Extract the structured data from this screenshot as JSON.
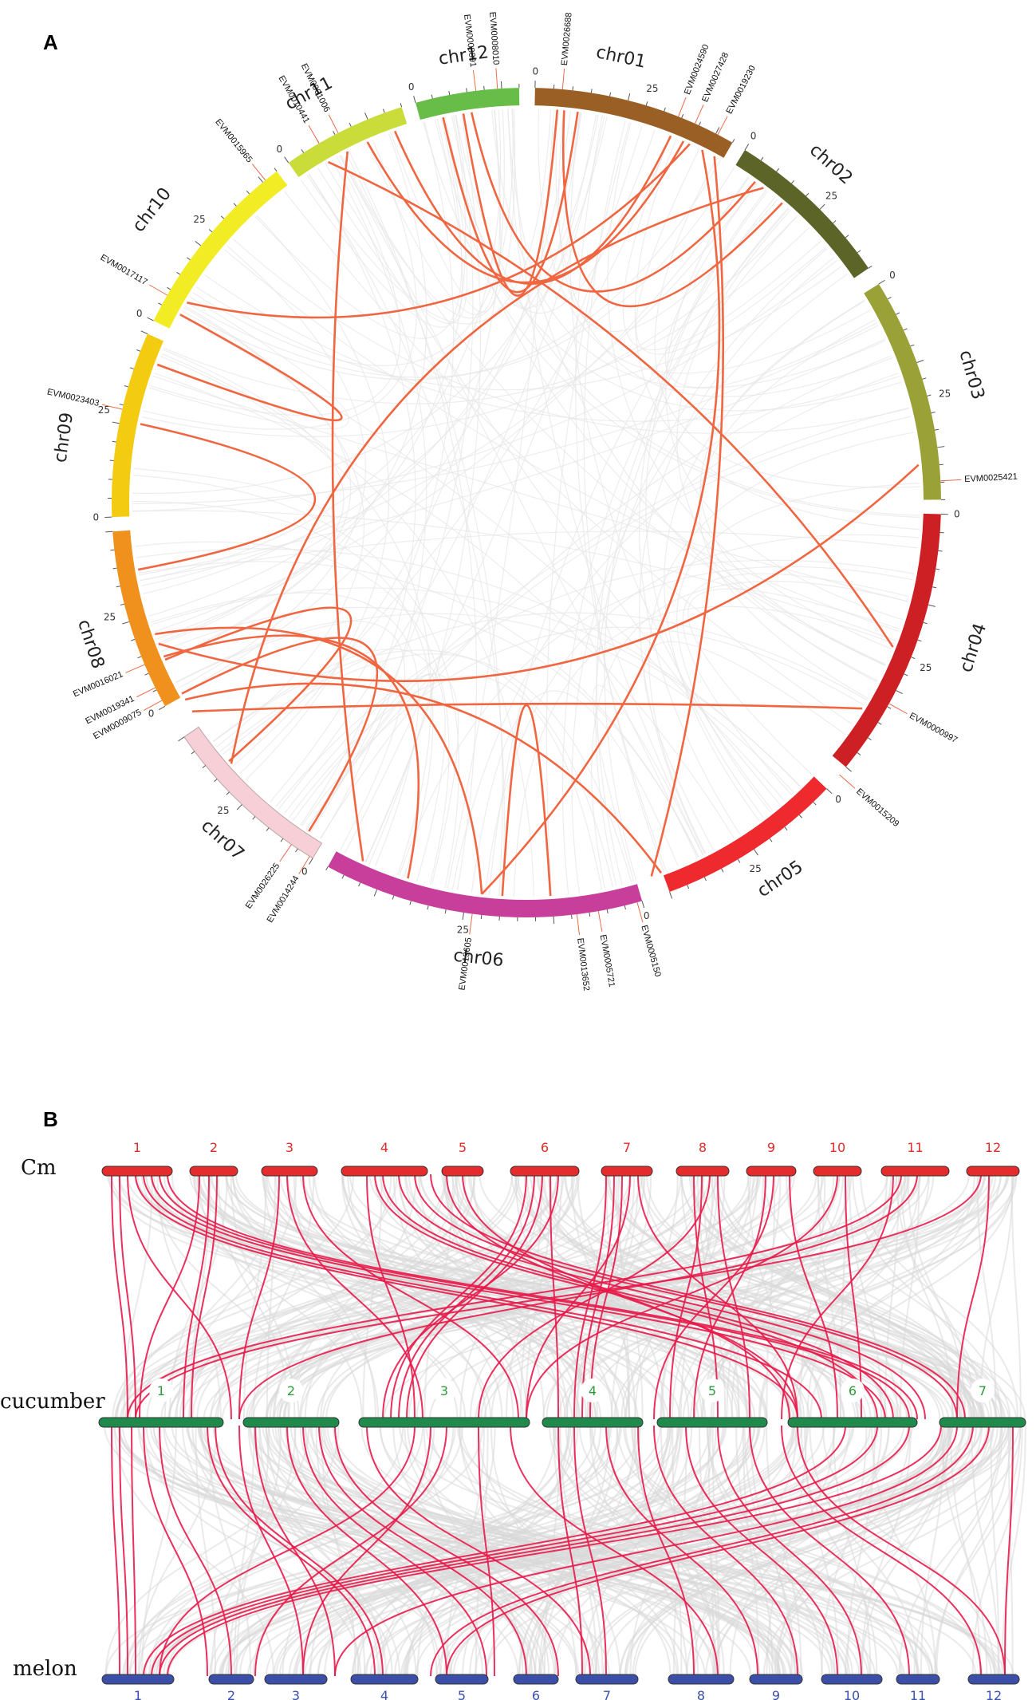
{
  "panel_a": {
    "label": "A",
    "chromosomes": [
      {
        "name": "chr01",
        "color": "#9a5f24"
      },
      {
        "name": "chr02",
        "color": "#5c6428"
      },
      {
        "name": "chr03",
        "color": "#9aa137"
      },
      {
        "name": "chr04",
        "color": "#cc2025"
      },
      {
        "name": "chr05",
        "color": "#ee2a2e"
      },
      {
        "name": "chr06",
        "color": "#c83f9b"
      },
      {
        "name": "chr07",
        "color": "#f7cfd6"
      },
      {
        "name": "chr08",
        "color": "#f0911d"
      },
      {
        "name": "chr09",
        "color": "#f3cc12"
      },
      {
        "name": "chr10",
        "color": "#f2ec25"
      },
      {
        "name": "chr11",
        "color": "#c9dc3a"
      },
      {
        "name": "chr12",
        "color": "#67bd47"
      }
    ],
    "tick_labels": [
      "0",
      "25"
    ],
    "genes": [
      "EVM0026688",
      "EVM0024590",
      "EVM0027428",
      "EVM0019230",
      "EVM0025421",
      "EVM0000997",
      "EVM0015209",
      "EVM0005150",
      "EVM0005721",
      "EVM0013652",
      "EVM0013605",
      "EVM0014244",
      "EVM0026225",
      "EVM0009075",
      "EVM0019341",
      "EVM0016021",
      "EVM0023403",
      "EVM0017117",
      "EVM0015965",
      "EVM0010441",
      "EVM0001006",
      "EVM0008891",
      "EVM0008010"
    ],
    "link_color": "#ef6641"
  },
  "panel_b": {
    "label": "B",
    "rows": [
      {
        "name": "Cm",
        "numbers": [
          "1",
          "2",
          "3",
          "4",
          "5",
          "6",
          "7",
          "8",
          "9",
          "10",
          "11",
          "12"
        ],
        "bar_color": "#e52b2b"
      },
      {
        "name": "cucumber",
        "numbers": [
          "1",
          "2",
          "3",
          "4",
          "5",
          "6",
          "7"
        ],
        "bar_color": "#1f8a4c"
      },
      {
        "name": "melon",
        "numbers": [
          "1",
          "2",
          "3",
          "4",
          "5",
          "6",
          "7",
          "8",
          "9",
          "10",
          "11",
          "12"
        ],
        "bar_color": "#3b4fa8"
      }
    ],
    "link_color": "#e8194a",
    "background_link_color": "#d9d9d9"
  }
}
